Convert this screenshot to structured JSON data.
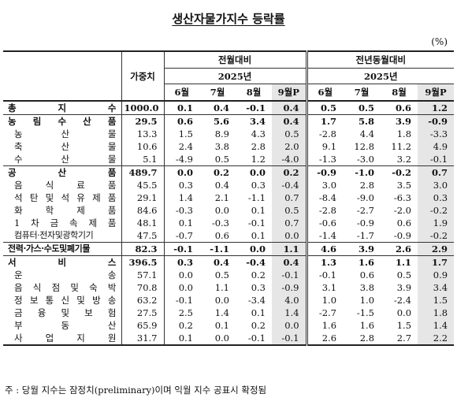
{
  "title": "생산자물가지수 등락률",
  "unit": "(%)",
  "header": {
    "weight": "가중치",
    "mom": "전월대비",
    "yoy": "전년동월대비",
    "year": "2025년",
    "months": [
      "6월",
      "7월",
      "8월",
      "9월P"
    ]
  },
  "rows": [
    {
      "label": "총 지 수",
      "level": 0,
      "weight": "1000.0",
      "mom": [
        "0.1",
        "0.4",
        "-0.1",
        "0.4"
      ],
      "yoy": [
        "0.5",
        "0.5",
        "0.6",
        "1.2"
      ]
    },
    {
      "label": "농 림 수 산 품",
      "level": 0,
      "weight": "29.5",
      "mom": [
        "0.6",
        "5.6",
        "3.4",
        "0.4"
      ],
      "yoy": [
        "1.7",
        "5.8",
        "3.9",
        "-0.9"
      ]
    },
    {
      "label": "농 산 물",
      "level": 1,
      "weight": "13.3",
      "mom": [
        "1.5",
        "8.9",
        "4.3",
        "0.5"
      ],
      "yoy": [
        "-2.8",
        "4.4",
        "1.8",
        "-3.3"
      ]
    },
    {
      "label": "축 산 물",
      "level": 1,
      "weight": "10.6",
      "mom": [
        "2.4",
        "3.8",
        "2.8",
        "2.0"
      ],
      "yoy": [
        "9.1",
        "12.8",
        "11.2",
        "4.9"
      ]
    },
    {
      "label": "수 산 물",
      "level": 1,
      "weight": "5.1",
      "mom": [
        "-4.9",
        "0.5",
        "1.2",
        "-4.0"
      ],
      "yoy": [
        "-1.3",
        "-3.0",
        "3.2",
        "-0.1"
      ]
    },
    {
      "label": "공 산 품",
      "level": 0,
      "weight": "489.7",
      "mom": [
        "0.0",
        "0.2",
        "0.0",
        "0.2"
      ],
      "yoy": [
        "-0.9",
        "-1.0",
        "-0.2",
        "0.7"
      ]
    },
    {
      "label": "음 식 료 품",
      "level": 1,
      "weight": "45.5",
      "mom": [
        "0.3",
        "0.4",
        "0.3",
        "-0.4"
      ],
      "yoy": [
        "3.0",
        "2.8",
        "3.5",
        "3.0"
      ]
    },
    {
      "label": "석 탄 및 석 유 제 품",
      "level": 1,
      "weight": "29.1",
      "mom": [
        "1.4",
        "2.1",
        "-1.1",
        "0.7"
      ],
      "yoy": [
        "-8.4",
        "-9.0",
        "-6.3",
        "0.3"
      ]
    },
    {
      "label": "화 학 제 품",
      "level": 1,
      "weight": "84.6",
      "mom": [
        "-0.3",
        "0.0",
        "0.1",
        "0.5"
      ],
      "yoy": [
        "-2.8",
        "-2.7",
        "-2.0",
        "-0.2"
      ]
    },
    {
      "label": "1 차 금 속 제 품",
      "level": 1,
      "weight": "48.1",
      "mom": [
        "0.1",
        "-0.3",
        "-0.1",
        "0.7"
      ],
      "yoy": [
        "-0.6",
        "-0.9",
        "0.6",
        "1.9"
      ]
    },
    {
      "label": "컴퓨터·전자및광학기기",
      "level": 1,
      "free": true,
      "weight": "47.5",
      "mom": [
        "-0.7",
        "0.6",
        "0.1",
        "0.0"
      ],
      "yoy": [
        "-1.4",
        "-1.7",
        "-0.9",
        "-0.2"
      ]
    },
    {
      "label": "전력·가스·수도및폐기물",
      "level": 0,
      "free": true,
      "weight": "82.3",
      "mom": [
        "-0.1",
        "-1.1",
        "0.0",
        "1.1"
      ],
      "yoy": [
        "4.6",
        "3.9",
        "2.6",
        "2.9"
      ]
    },
    {
      "label": "서 비 스",
      "level": 0,
      "weight": "396.5",
      "mom": [
        "0.3",
        "0.4",
        "-0.4",
        "0.4"
      ],
      "yoy": [
        "1.3",
        "1.6",
        "1.1",
        "1.7"
      ]
    },
    {
      "label": "운 송",
      "level": 1,
      "weight": "57.1",
      "mom": [
        "0.0",
        "0.5",
        "0.2",
        "-0.1"
      ],
      "yoy": [
        "-0.1",
        "0.6",
        "0.5",
        "0.9"
      ]
    },
    {
      "label": "음 식 점 및 숙 박",
      "level": 1,
      "weight": "70.8",
      "mom": [
        "0.0",
        "1.1",
        "0.3",
        "-0.9"
      ],
      "yoy": [
        "3.1",
        "3.8",
        "3.9",
        "3.4"
      ]
    },
    {
      "label": "정 보 통 신 및 방 송",
      "level": 1,
      "weight": "63.2",
      "mom": [
        "-0.1",
        "0.0",
        "-3.4",
        "4.0"
      ],
      "yoy": [
        "1.0",
        "1.0",
        "-2.4",
        "1.5"
      ]
    },
    {
      "label": "금 융 및 보 험",
      "level": 1,
      "weight": "27.5",
      "mom": [
        "2.5",
        "1.4",
        "0.1",
        "1.4"
      ],
      "yoy": [
        "-2.7",
        "-1.5",
        "0.0",
        "1.8"
      ]
    },
    {
      "label": "부 동 산",
      "level": 1,
      "weight": "65.9",
      "mom": [
        "0.2",
        "0.1",
        "0.2",
        "0.0"
      ],
      "yoy": [
        "1.6",
        "1.6",
        "1.5",
        "1.4"
      ]
    },
    {
      "label": "사 업 지 원",
      "level": 1,
      "weight": "31.7",
      "mom": [
        "0.1",
        "0.0",
        "-0.1",
        "-0.1"
      ],
      "yoy": [
        "2.6",
        "2.8",
        "2.7",
        "2.2"
      ]
    }
  ],
  "footnote": "주 : 당월 지수는 잠정치(preliminary)이며 익월 지수 공표시 확정됨"
}
